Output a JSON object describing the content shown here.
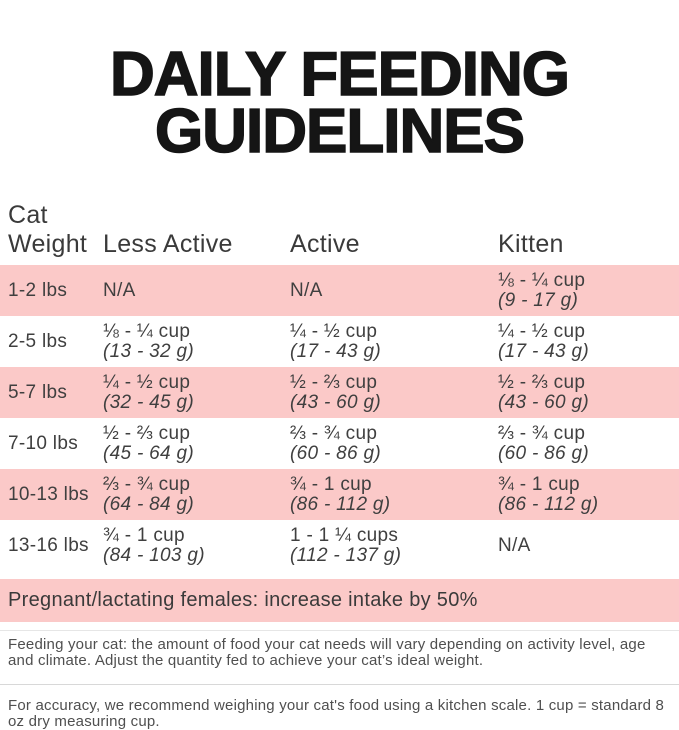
{
  "theme": {
    "colors": {
      "pink": "#fbc9c8",
      "title_text": "#151515",
      "header_text": "#3a3a3a",
      "cell_text": "#3f3f3f",
      "note_text": "#4f4f4f",
      "hairline": "#d8d8d8",
      "hairline_light": "#e6e6e6"
    }
  },
  "title": {
    "line1": "DAILY FEEDING",
    "line2": "GUIDELINES"
  },
  "table": {
    "headers": {
      "col1_line1": "Cat",
      "col1_line2": "Weight",
      "col2": "Less Active",
      "col3": "Active",
      "col4": "Kitten"
    },
    "rows": [
      {
        "weight": "1-2 lbs",
        "less_active": {
          "amount": "N/A",
          "grams": ""
        },
        "active": {
          "amount": "N/A",
          "grams": ""
        },
        "kitten": {
          "amount": "⅛ - ¼ cup",
          "grams": "(9 - 17 g)"
        }
      },
      {
        "weight": "2-5 lbs",
        "less_active": {
          "amount": "⅛ - ¼ cup",
          "grams": "(13 - 32 g)"
        },
        "active": {
          "amount": "¼ - ½ cup",
          "grams": "(17 - 43 g)"
        },
        "kitten": {
          "amount": "¼ - ½ cup",
          "grams": "(17 - 43 g)"
        }
      },
      {
        "weight": "5-7 lbs",
        "less_active": {
          "amount": "¼ - ½ cup",
          "grams": "(32 - 45 g)"
        },
        "active": {
          "amount": "½ - ⅔ cup",
          "grams": "(43 - 60 g)"
        },
        "kitten": {
          "amount": "½ - ⅔ cup",
          "grams": "(43 - 60 g)"
        }
      },
      {
        "weight": "7-10 lbs",
        "less_active": {
          "amount": "½ - ⅔ cup",
          "grams": "(45 - 64 g)"
        },
        "active": {
          "amount": "⅔ - ¾ cup",
          "grams": "(60 - 86 g)"
        },
        "kitten": {
          "amount": "⅔ - ¾ cup",
          "grams": "(60 - 86 g)"
        }
      },
      {
        "weight": "10-13 lbs",
        "less_active": {
          "amount": "⅔ - ¾ cup",
          "grams": "(64 - 84 g)"
        },
        "active": {
          "amount": "¾ - 1 cup",
          "grams": "(86 - 112 g)"
        },
        "kitten": {
          "amount": "¾ - 1 cup",
          "grams": "(86 - 112 g)"
        }
      },
      {
        "weight": "13-16 lbs",
        "less_active": {
          "amount": "¾ - 1 cup",
          "grams": "(84 - 103 g)"
        },
        "active": {
          "amount": "1 - 1 ¼ cups",
          "grams": "(112 - 137 g)"
        },
        "kitten": {
          "amount": "N/A",
          "grams": ""
        }
      }
    ]
  },
  "banner": {
    "text": "Pregnant/lactating females: increase intake by 50%"
  },
  "notes": {
    "feeding": "Feeding your cat: the amount of food your cat needs will vary depending on activity level, age and climate. Adjust the quantity fed to achieve your cat’s ideal weight.",
    "accuracy": "For accuracy, we recommend weighing your cat's food using a kitchen scale. 1 cup = standard 8 oz dry measuring cup."
  }
}
